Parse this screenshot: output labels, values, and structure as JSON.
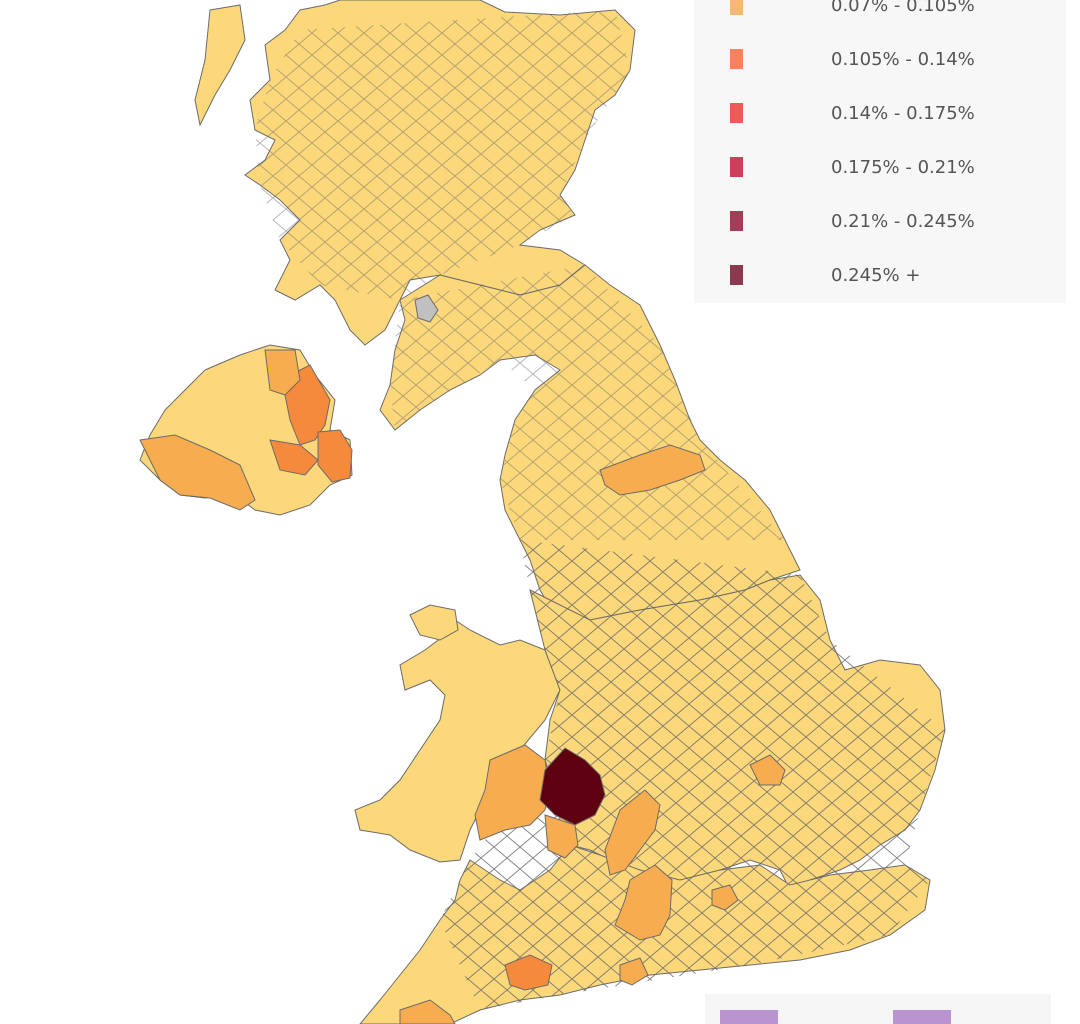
{
  "colors": {
    "base": "#fcd87a",
    "light_orange": "#f7ad4f",
    "orange": "#f68a3c",
    "darkest": "#5f0010",
    "no_data": "#c0c0c0",
    "boundary": "#6b6b6b",
    "legend_bg": "#f7f7f7",
    "purple": "#b994cf"
  },
  "legend": {
    "items": [
      {
        "label": "0.07% - 0.105%",
        "color": "#f9b870"
      },
      {
        "label": "0.105% - 0.14%",
        "color": "#f8825c"
      },
      {
        "label": "0.14% - 0.175%",
        "color": "#ee5a58"
      },
      {
        "label": "0.175% - 0.21%",
        "color": "#cd3f5b"
      },
      {
        "label": "0.21% - 0.245%",
        "color": "#a73c58"
      },
      {
        "label": "0.245% +",
        "color": "#8a3a4e"
      }
    ]
  },
  "bottom_panel": {
    "chips": [
      "purple-chip-left",
      "purple-chip-right"
    ]
  }
}
